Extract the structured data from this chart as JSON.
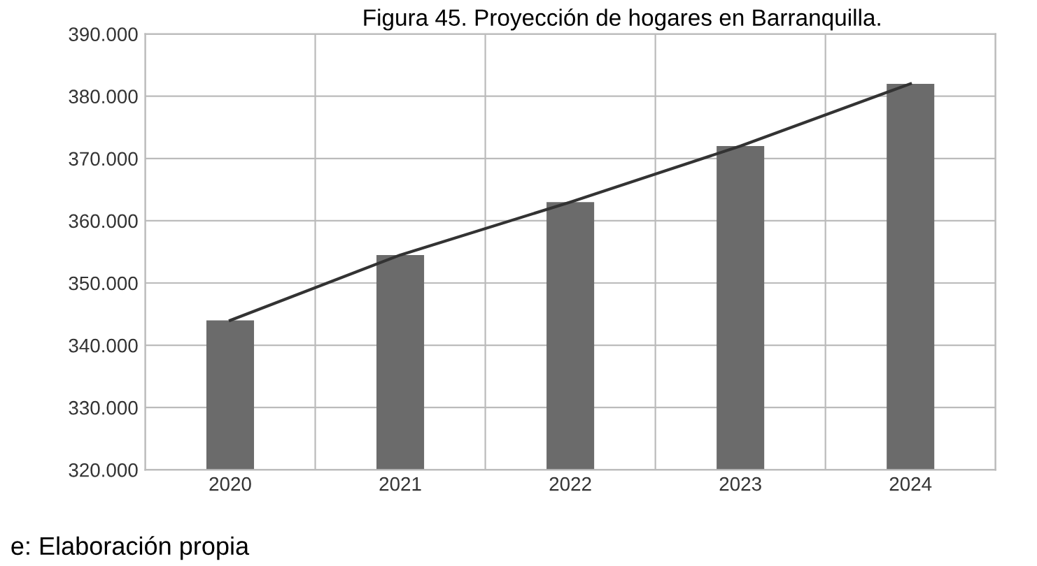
{
  "chart_data": {
    "type": "bar",
    "title": "Figura 45. Proyección de hogares en Barranquilla.",
    "categories": [
      "2020",
      "2021",
      "2022",
      "2023",
      "2024"
    ],
    "series": [
      {
        "color": "#6b6b6b",
        "values": [
          344000,
          354500,
          363000,
          372000,
          382000
        ]
      },
      {
        "type": "line",
        "color": "#333333",
        "values": [
          344000,
          354500,
          363000,
          372000,
          382000
        ]
      }
    ],
    "ylim": [
      320000,
      390000
    ],
    "yticks": [
      {
        "value": 320000,
        "label": "320.000"
      },
      {
        "value": 330000,
        "label": "330.000"
      },
      {
        "value": 340000,
        "label": "340.000"
      },
      {
        "value": 350000,
        "label": "350.000"
      },
      {
        "value": 360000,
        "label": "360.000"
      },
      {
        "value": 370000,
        "label": "370.000"
      },
      {
        "value": 380000,
        "label": "380.000"
      },
      {
        "value": 390000,
        "label": "390.000"
      }
    ],
    "grid": true,
    "annotations": [
      "e: Elaboración propia"
    ]
  }
}
